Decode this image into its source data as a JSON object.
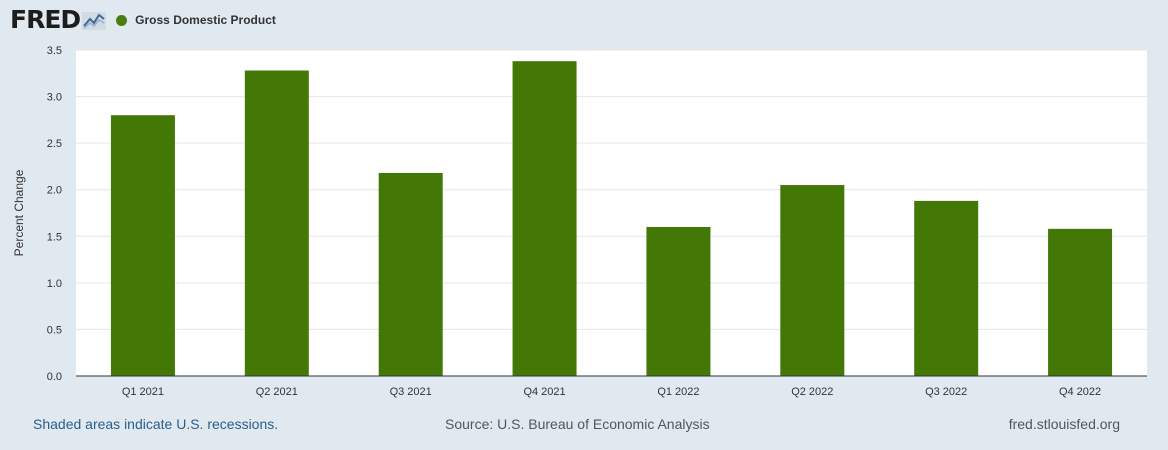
{
  "header": {
    "logo_text": "FRED",
    "logo_icon": "fred-chart-icon",
    "legend_label": "Gross Domestic Product"
  },
  "colors": {
    "background": "#e1e9f0",
    "plot_background": "#ffffff",
    "bar": "#437806",
    "legend_swatch": "#4d7c0f",
    "gridline": "#e6e6e6",
    "link": "#2b5d8a"
  },
  "chart_data": {
    "type": "bar",
    "categories": [
      "Q1 2021",
      "Q2 2021",
      "Q3 2021",
      "Q4 2021",
      "Q1 2022",
      "Q2 2022",
      "Q3 2022",
      "Q4 2022"
    ],
    "series": [
      {
        "name": "Gross Domestic Product",
        "values": [
          2.8,
          3.28,
          2.18,
          3.38,
          1.6,
          2.05,
          1.88,
          1.58
        ]
      }
    ],
    "ylabel": "Percent Change",
    "xlabel": "",
    "ylim": [
      0,
      3.5
    ],
    "yticks": [
      "0.0",
      "0.5",
      "1.0",
      "1.5",
      "2.0",
      "2.5",
      "3.0",
      "3.5"
    ],
    "grid": true,
    "legend": "top-left"
  },
  "footer": {
    "recession_note": "Shaded areas indicate U.S. recessions.",
    "source": "Source: U.S. Bureau of Economic Analysis",
    "site": "fred.stlouisfed.org"
  }
}
